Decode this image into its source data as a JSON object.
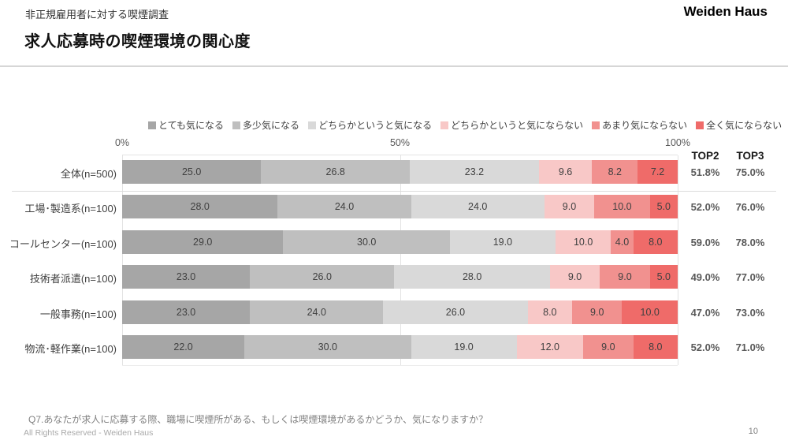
{
  "header": {
    "subtitle": "非正規雇用者に対する喫煙調査",
    "title": "求人応募時の喫煙環境の関心度",
    "brand": "Weiden Haus"
  },
  "columns": {
    "top2": "TOP2",
    "top3": "TOP3"
  },
  "chart_data": {
    "type": "bar",
    "stacked": true,
    "orientation": "horizontal",
    "title": "求人応募時の喫煙環境の関心度",
    "xlim": [
      0,
      100
    ],
    "x_ticks": [
      {
        "label": "0%",
        "value": 0
      },
      {
        "label": "50%",
        "value": 50
      },
      {
        "label": "100%",
        "value": 100
      }
    ],
    "legend_position": "top",
    "series": [
      {
        "name": "とても気になる",
        "color": "#A6A6A6"
      },
      {
        "name": "多少気になる",
        "color": "#BFBFBF"
      },
      {
        "name": "どちらかというと気になる",
        "color": "#D9D9D9"
      },
      {
        "name": "どちらかというと気にならない",
        "color": "#F8C8C7"
      },
      {
        "name": "あまり気にならない",
        "color": "#F1918F"
      },
      {
        "name": "全く気にならない",
        "color": "#EF6B69"
      }
    ],
    "rows": [
      {
        "category": "全体(n=500)",
        "values": [
          25.0,
          26.8,
          23.2,
          9.6,
          8.2,
          7.2
        ],
        "top2": "51.8%",
        "top3": "75.0%"
      },
      {
        "category": "工場･製造系(n=100)",
        "values": [
          28.0,
          24.0,
          24.0,
          9.0,
          10.0,
          5.0
        ],
        "top2": "52.0%",
        "top3": "76.0%"
      },
      {
        "category": "コールセンター(n=100)",
        "values": [
          29.0,
          30.0,
          19.0,
          10.0,
          4.0,
          8.0
        ],
        "top2": "59.0%",
        "top3": "78.0%"
      },
      {
        "category": "技術者派遣(n=100)",
        "values": [
          23.0,
          26.0,
          28.0,
          9.0,
          9.0,
          5.0
        ],
        "top2": "49.0%",
        "top3": "77.0%"
      },
      {
        "category": "一般事務(n=100)",
        "values": [
          23.0,
          24.0,
          26.0,
          8.0,
          9.0,
          10.0
        ],
        "top2": "47.0%",
        "top3": "73.0%"
      },
      {
        "category": "物流･軽作業(n=100)",
        "values": [
          22.0,
          30.0,
          19.0,
          12.0,
          9.0,
          8.0
        ],
        "top2": "52.0%",
        "top3": "71.0%"
      }
    ]
  },
  "footer": {
    "question": "Q7.あなたが求人に応募する際、職場に喫煙所がある、もしくは喫煙環境があるかどうか、気になりますか？",
    "copyright": "All Rights Reserved - Weiden Haus",
    "page": "10"
  }
}
